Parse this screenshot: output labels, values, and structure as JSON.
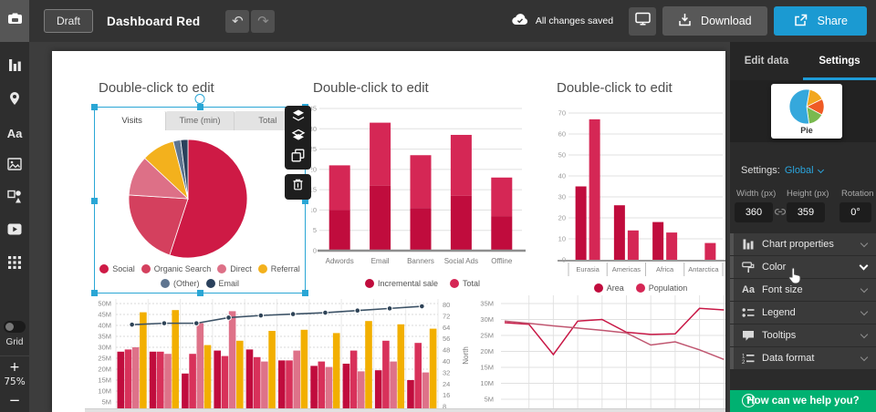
{
  "header": {
    "draft": "Draft",
    "title": "Dashboard Red",
    "undo": "↶",
    "redo": "↷",
    "status": "All changes saved",
    "download": "Download",
    "share": "Share"
  },
  "sidebar": {
    "grid_label": "Grid",
    "zoom_in": "+",
    "zoom_level": "75%",
    "zoom_out": "−"
  },
  "panel": {
    "tabs": [
      {
        "label": "Edit data"
      },
      {
        "label": "Settings"
      }
    ],
    "active_tab": "Settings",
    "chart_type_card": {
      "label": "Pie"
    },
    "scope_label": "Settings:",
    "scope_value": "Global",
    "fields": [
      {
        "label": "Width (px)",
        "value": "360"
      },
      {
        "label": "Height (px)",
        "value": "359"
      },
      {
        "label": "Rotation",
        "value": "0°"
      }
    ],
    "sections": [
      {
        "label": "Chart properties"
      },
      {
        "label": "Color"
      },
      {
        "label": "Font size"
      },
      {
        "label": "Legend"
      },
      {
        "label": "Tooltips"
      },
      {
        "label": "Data format"
      }
    ],
    "help": "How can we help you?"
  },
  "accent": {
    "blue": "#1e9cd8",
    "green": "#00b171",
    "selection": "#2aa6d5"
  },
  "chart_data": [
    {
      "id": "traffic-pie",
      "type": "pie",
      "title": "Double-click to edit",
      "tabs": [
        "Visits",
        "Time (min)",
        "Total"
      ],
      "active_tab": "Visits",
      "legend_position": "bottom",
      "slices": [
        {
          "label": "Social",
          "value": 55,
          "color": "#ce1a45"
        },
        {
          "label": "Organic Search",
          "value": 21,
          "color": "#d4405e"
        },
        {
          "label": "Direct",
          "value": 11,
          "color": "#dd7087"
        },
        {
          "label": "Referral",
          "value": 9,
          "color": "#f3b11d"
        },
        {
          "label": "(Other)",
          "value": 2,
          "color": "#5f7590"
        },
        {
          "label": "Email",
          "value": 2,
          "color": "#2a415c"
        }
      ]
    },
    {
      "id": "marketing-stacked-bar",
      "type": "bar",
      "title": "Double-click to edit",
      "categories": [
        "Adwords",
        "Email",
        "Banners",
        "Social Ads",
        "Offline"
      ],
      "series": [
        {
          "name": "Incremental sale",
          "color": "#c00c3d",
          "values": [
            10,
            16,
            10.5,
            13.5,
            8.5
          ]
        },
        {
          "name": "Total",
          "color": "#d52755",
          "values": [
            21,
            31.5,
            23.5,
            28.5,
            18
          ]
        }
      ],
      "ylim": [
        0,
        35
      ],
      "yticks": [
        0,
        5,
        10,
        15,
        20,
        25,
        30,
        35
      ],
      "grid": true,
      "legend_position": "bottom"
    },
    {
      "id": "continents-grouped-bar",
      "type": "bar",
      "title": "Double-click to edit",
      "categories": [
        "Eurasia",
        "Americas",
        "Africa",
        "Antarctica"
      ],
      "series": [
        {
          "name": "Area",
          "color": "#c00c3d",
          "values": [
            35,
            26,
            18,
            0
          ]
        },
        {
          "name": "Population",
          "color": "#d52755",
          "values": [
            67,
            14,
            13,
            8
          ]
        }
      ],
      "ylim": [
        0,
        70
      ],
      "yticks": [
        0,
        10,
        20,
        30,
        40,
        50,
        60,
        70
      ],
      "grid": true,
      "legend_position": "bottom"
    },
    {
      "id": "combo-bars-line",
      "type": "bar",
      "left_axis": {
        "tick_labels": [
          "50M",
          "45M",
          "40M",
          "35M",
          "30M",
          "25M",
          "20M",
          "15M",
          "10M",
          "5M"
        ],
        "lim": [
          5,
          50
        ]
      },
      "right_axis": {
        "tick_labels": [
          "80",
          "72",
          "64",
          "56",
          "48",
          "40",
          "32",
          "24",
          "16",
          "8"
        ],
        "lim": [
          8,
          80
        ]
      },
      "bar_series": [
        {
          "color": "#c00c3d",
          "values": [
            28,
            28,
            18,
            28.5,
            29,
            24,
            21.5,
            22.5,
            19.5,
            15
          ]
        },
        {
          "color": "#d8315a",
          "values": [
            29,
            28,
            27,
            26,
            25.5,
            24,
            23.5,
            28.5,
            33,
            32
          ]
        },
        {
          "color": "#de7289",
          "values": [
            30,
            27,
            41,
            46.5,
            23.5,
            28.5,
            21,
            19,
            23.5,
            18.5
          ]
        },
        {
          "color": "#f2af00",
          "values": [
            46,
            47,
            31,
            33,
            37.5,
            38,
            36.5,
            42,
            40.5,
            38.5
          ]
        }
      ],
      "line_series": {
        "color": "#3c5266",
        "dot_color": "#2e4357",
        "axis": "right",
        "values": [
          66,
          67,
          67,
          71,
          72.5,
          73.5,
          74.5,
          76,
          77.5,
          79
        ]
      }
    },
    {
      "id": "north-line",
      "type": "line",
      "ylabel": "North",
      "yticks": [
        "35M",
        "30M",
        "25M",
        "20M",
        "15M",
        "10M",
        "5M"
      ],
      "ylim": [
        5,
        35
      ],
      "series": [
        {
          "color": "#c81745",
          "values": [
            29,
            28.5,
            19,
            29.5,
            30,
            26,
            25.3,
            25.5,
            33.5,
            33
          ]
        },
        {
          "color": "#c05670",
          "values": [
            29.5,
            28.8,
            28,
            27.3,
            26.6,
            25.8,
            22,
            23,
            20.5,
            17.5
          ]
        }
      ]
    },
    {
      "id": "pie-type-thumbnail",
      "type": "pie",
      "label": "Pie",
      "start_angle": 10,
      "slices": [
        {
          "value": 15,
          "color": "#f2a71e"
        },
        {
          "value": 15,
          "color": "#ef5b25"
        },
        {
          "value": 15,
          "color": "#79b94f"
        },
        {
          "value": 55,
          "color": "#35a8dc"
        }
      ]
    }
  ]
}
